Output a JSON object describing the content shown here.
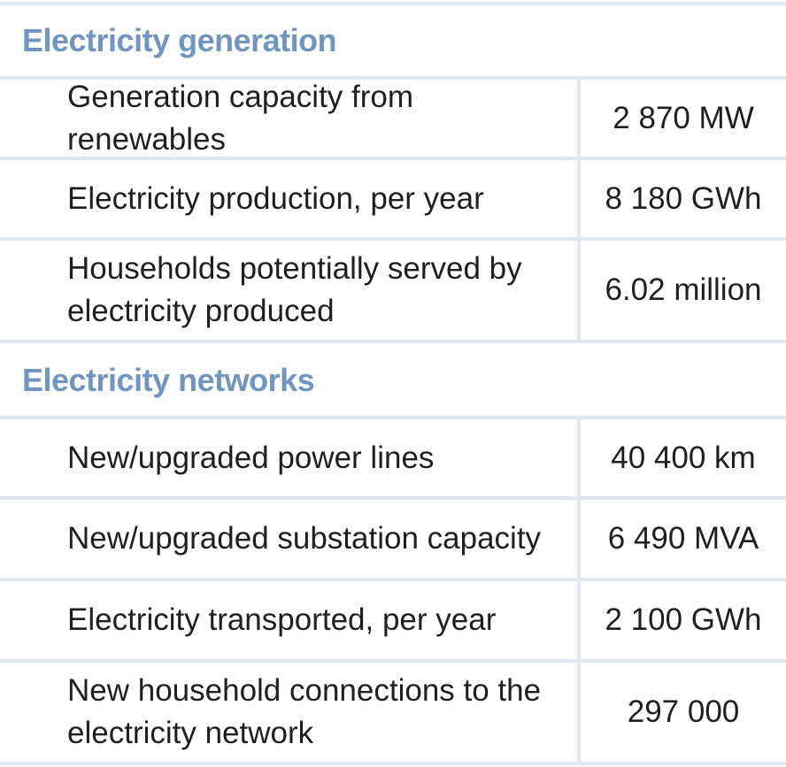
{
  "sections": [
    {
      "title": "Electricity generation",
      "rows": [
        {
          "label": "Generation capacity from renewables",
          "value": "2 870 MW"
        },
        {
          "label": "Electricity production, per year",
          "value": "8 180 GWh"
        },
        {
          "label": "Households potentially served by\nelectricity produced",
          "value": "6.02 million"
        }
      ]
    },
    {
      "title": "Electricity networks",
      "rows": [
        {
          "label": "New/upgraded power lines",
          "value": "40 400 km"
        },
        {
          "label": "New/upgraded substation capacity",
          "value": "6 490 MVA"
        },
        {
          "label": "Electricity transported, per year",
          "value": "2 100 GWh"
        },
        {
          "label": "New household connections to the\nelectricity network",
          "value": "297 000"
        }
      ]
    }
  ]
}
